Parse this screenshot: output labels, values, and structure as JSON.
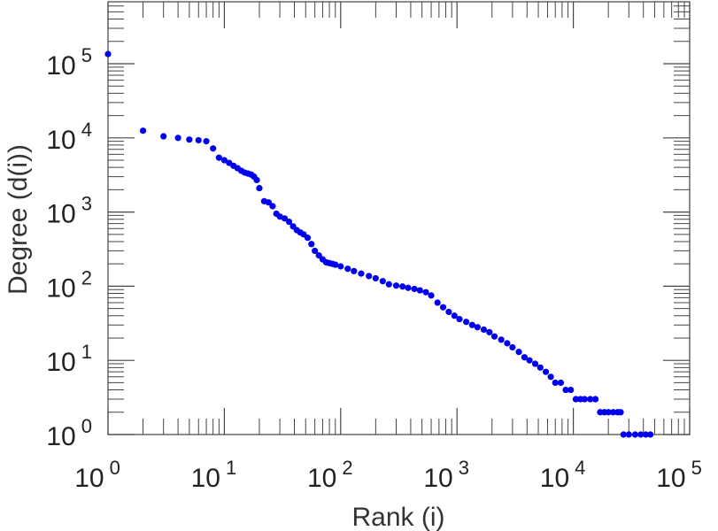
{
  "chart_data": {
    "type": "scatter",
    "title": "",
    "xlabel": "Rank (i)",
    "ylabel": "Degree (d(i))",
    "x_scale": "log",
    "y_scale": "log",
    "xlim": [
      1,
      100000
    ],
    "ylim": [
      1,
      1000000
    ],
    "x_ticks": [
      {
        "base": "10",
        "exp": "0",
        "value": 1
      },
      {
        "base": "10",
        "exp": "1",
        "value": 10
      },
      {
        "base": "10",
        "exp": "2",
        "value": 100
      },
      {
        "base": "10",
        "exp": "3",
        "value": 1000
      },
      {
        "base": "10",
        "exp": "4",
        "value": 10000
      },
      {
        "base": "10",
        "exp": "5",
        "value": 100000
      }
    ],
    "y_ticks": [
      {
        "base": "10",
        "exp": "0",
        "value": 1
      },
      {
        "base": "10",
        "exp": "1",
        "value": 10
      },
      {
        "base": "10",
        "exp": "2",
        "value": 100
      },
      {
        "base": "10",
        "exp": "3",
        "value": 1000
      },
      {
        "base": "10",
        "exp": "4",
        "value": 10000
      },
      {
        "base": "10",
        "exp": "5",
        "value": 100000
      }
    ],
    "grid": false,
    "marker_color": "#0000ee",
    "series": [
      {
        "x": [
          1,
          2,
          3,
          4,
          5,
          6,
          7,
          8,
          9,
          10,
          11,
          12,
          13,
          14,
          15,
          16,
          17,
          18,
          19,
          20,
          22,
          24,
          26,
          28,
          30,
          33,
          36,
          39,
          42,
          45,
          48,
          52,
          56,
          60,
          65,
          70,
          75,
          80,
          85,
          90,
          100,
          115,
          130,
          150,
          175,
          200,
          230,
          260,
          300,
          340,
          380,
          430,
          480,
          540,
          600,
          680,
          760,
          850,
          950,
          1050,
          1200,
          1350,
          1500,
          1700,
          1900,
          2100,
          2400,
          2700,
          3000,
          3400,
          3800,
          4200,
          4700,
          5200,
          5800,
          6400,
          7000,
          7800,
          8600,
          9500,
          10500,
          11500,
          12500,
          14000,
          15500,
          17000,
          18500,
          20000,
          22000,
          24000,
          25500,
          27000,
          30000,
          34000,
          38000,
          42000,
          46000
        ],
        "y": [
          135000,
          12500,
          10500,
          10000,
          9500,
          9300,
          9000,
          7200,
          5400,
          5000,
          4600,
          4200,
          3900,
          3600,
          3400,
          3300,
          3200,
          3000,
          2700,
          2100,
          1400,
          1350,
          1200,
          950,
          870,
          820,
          740,
          640,
          570,
          530,
          500,
          450,
          370,
          300,
          260,
          230,
          210,
          205,
          200,
          195,
          185,
          172,
          160,
          148,
          137,
          128,
          117,
          106,
          102,
          99,
          95,
          92,
          88,
          83,
          75,
          60,
          52,
          45,
          40,
          36,
          33,
          30,
          28,
          26,
          24,
          21,
          19,
          17,
          15,
          13,
          11,
          10,
          9,
          8,
          7,
          6,
          5,
          5,
          4,
          4,
          3,
          3,
          3,
          3,
          3,
          2,
          2,
          2,
          2,
          2,
          2,
          1,
          1,
          1,
          1,
          1,
          1
        ]
      }
    ]
  }
}
